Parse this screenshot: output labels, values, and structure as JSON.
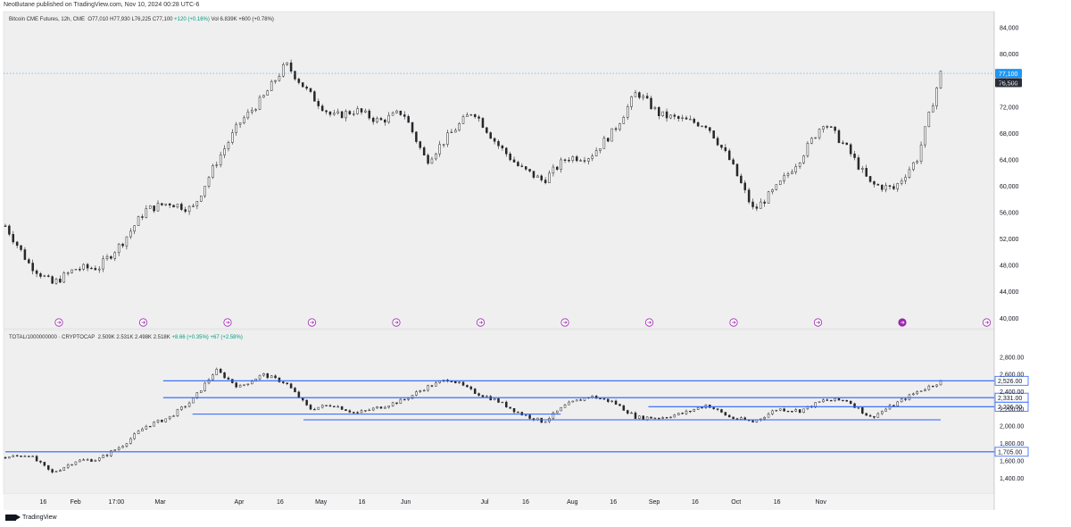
{
  "header": {
    "text": "NeoButane published on TradingView.com, Nov 10, 2024 00:28 UTC-6"
  },
  "footer": {
    "brand": "TradingView"
  },
  "colors": {
    "bull": "#089981",
    "bear": "#f23645",
    "candle": "#26262a",
    "level": "#2962ff",
    "price_tag": "#2196f3",
    "event": "#9c27b0"
  },
  "chart_data": [
    {
      "type": "candlestick",
      "title": "Bitcoin CME Futures, 12h, CME",
      "ohlc_legend": {
        "open": "O77,010",
        "high": "H77,930",
        "low": "L76,225",
        "close": "C77,100",
        "change": "+120 (+0.16%)",
        "volume": "Vol 6.839K +600 (+0.78%)"
      },
      "y_ticks": [
        "84,000",
        "80,000",
        "76,000",
        "72,000",
        "68,000",
        "64,000",
        "60,000",
        "56,000",
        "52,000",
        "48,000",
        "44,000",
        "40,000"
      ],
      "ylim": [
        39500,
        85500
      ],
      "price_tags": [
        {
          "label": "77,100",
          "value": 77100,
          "style": "blue"
        },
        {
          "label": "76,500",
          "value": 76500,
          "style": "dark"
        }
      ],
      "last_price_line": 77100,
      "x": [
        0,
        8,
        16,
        24,
        32,
        40,
        48,
        56,
        64,
        72,
        80,
        88,
        96,
        104,
        112,
        120,
        128,
        136,
        144,
        152,
        160,
        168,
        176,
        184,
        192,
        200,
        208,
        216,
        224,
        232,
        240,
        248,
        256,
        264,
        272,
        280,
        288,
        296,
        304,
        312,
        320
      ],
      "close": [
        54000,
        48300,
        45200,
        47500,
        47700,
        51500,
        56400,
        57500,
        56500,
        63500,
        69500,
        73300,
        78500,
        74000,
        70500,
        71500,
        69800,
        71300,
        63800,
        67800,
        71500,
        66500,
        62800,
        60800,
        64300,
        64500,
        68300,
        74300,
        70800,
        70000,
        69300,
        63800,
        56300,
        59800,
        64300,
        69800,
        65700,
        60300,
        59600,
        64200,
        77100
      ],
      "event_markers": {
        "count": 12,
        "last_highlighted": true
      }
    },
    {
      "type": "candlestick",
      "title": "TOTAL/1000000000 · CRYPTOCAP",
      "ohlc_legend": {
        "open": "2.509K",
        "high": "2.531K",
        "low": "2.498K",
        "close": "2.518K",
        "change": "+8.66 (+0.35%)",
        "volume": "+67 (+2.58%)"
      },
      "y_ticks": [
        "2,800.00",
        "2,600.00",
        "2,400.00",
        "2,200.00",
        "2,000.00",
        "1,800.00",
        "1,600.00",
        "1,400.00"
      ],
      "ylim": [
        1300,
        2870
      ],
      "x": [
        0,
        8,
        16,
        24,
        32,
        40,
        48,
        56,
        64,
        72,
        80,
        88,
        96,
        104,
        112,
        120,
        128,
        136,
        144,
        152,
        160,
        168,
        176,
        184,
        192,
        200,
        208,
        216,
        224,
        232,
        240,
        248,
        256,
        264,
        272,
        280,
        288,
        296,
        304,
        312,
        320
      ],
      "close": [
        1640,
        1670,
        1460,
        1600,
        1620,
        1780,
        2000,
        2100,
        2300,
        2650,
        2450,
        2600,
        2500,
        2200,
        2250,
        2150,
        2220,
        2300,
        2450,
        2550,
        2400,
        2300,
        2150,
        2050,
        2250,
        2350,
        2280,
        2100,
        2100,
        2150,
        2250,
        2100,
        2050,
        2200,
        2180,
        2300,
        2300,
        2100,
        2250,
        2400,
        2518
      ],
      "levels": [
        {
          "label": "2,526.00",
          "value": 2526,
          "x_from": 54,
          "x_to": 320
        },
        {
          "label": "2,331.00",
          "value": 2331,
          "x_from": 54,
          "x_to": 320
        },
        {
          "label": "2,226.00",
          "value": 2226,
          "x_from": 220,
          "x_to": 320
        },
        {
          "label": "1,705.00",
          "value": 1705,
          "x_from": 0,
          "x_to": 320
        }
      ],
      "extra_levels": [
        {
          "value": 2140,
          "x_from": 64,
          "x_to": 190
        },
        {
          "value": 2075,
          "x_from": 102,
          "x_to": 320
        }
      ],
      "x_ticks": [
        {
          "label": "16",
          "x": 5
        },
        {
          "label": "Feb",
          "x": 24
        },
        {
          "label": "17:00",
          "x": 38
        },
        {
          "label": "Mar",
          "x": 53
        },
        {
          "label": "Apr",
          "x": 80
        },
        {
          "label": "16",
          "x": 94
        },
        {
          "label": "May",
          "x": 108
        },
        {
          "label": "16",
          "x": 122
        },
        {
          "label": "Jun",
          "x": 137
        },
        {
          "label": "Jul",
          "x": 164
        },
        {
          "label": "16",
          "x": 178
        },
        {
          "label": "Aug",
          "x": 194
        },
        {
          "label": "16",
          "x": 208
        },
        {
          "label": "Sep",
          "x": 222
        },
        {
          "label": "16",
          "x": 236
        },
        {
          "label": "Oct",
          "x": 250
        },
        {
          "label": "16",
          "x": 264
        },
        {
          "label": "Nov",
          "x": 279
        }
      ]
    }
  ]
}
